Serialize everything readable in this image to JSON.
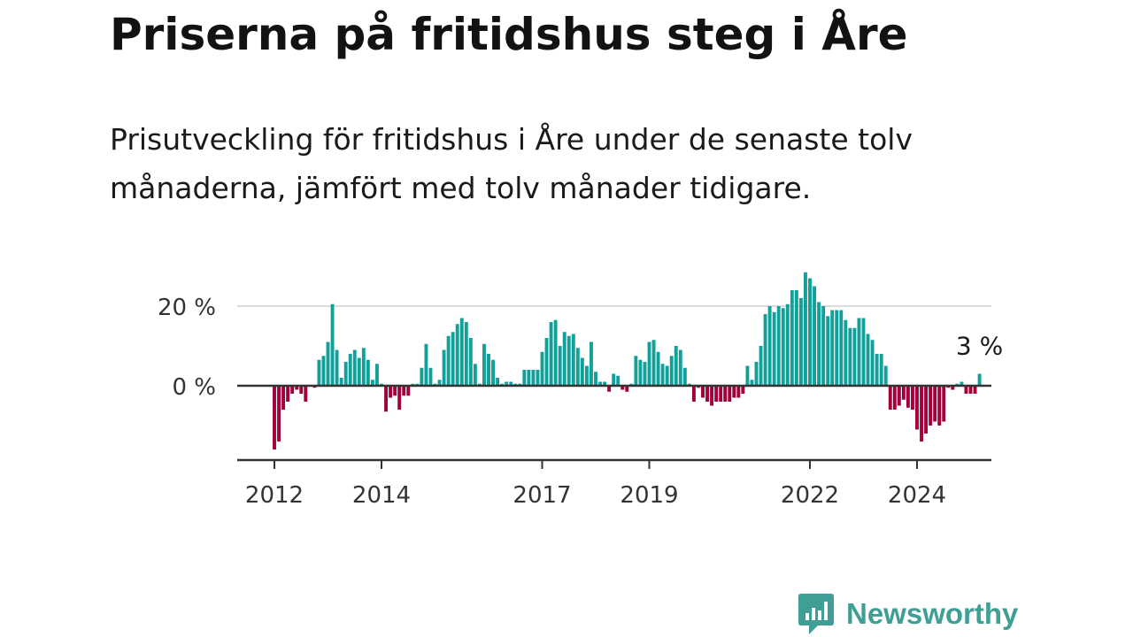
{
  "title": "Priserna på fritidshus steg i Åre",
  "subtitle": "Prisutveckling för fritidshus i Åre under de senaste tolv månaderna, jämfört med tolv månader tidigare.",
  "brand": {
    "name": "Newsworthy",
    "color": "#3f9f94"
  },
  "chart_data": {
    "type": "bar",
    "unit": "%",
    "x_start": "2012-01",
    "ylim": [
      -18,
      30
    ],
    "y_ticks": [
      0,
      20
    ],
    "y_tick_labels": [
      "0 %",
      "20 %"
    ],
    "x_ticks": [
      "2012",
      "2014",
      "2017",
      "2019",
      "2022",
      "2024"
    ],
    "grid": true,
    "colors": {
      "positive": "#12a19a",
      "negative": "#a3003b"
    },
    "annotation": {
      "text": "3 %"
    },
    "values": [
      -16,
      -14,
      -6,
      -4,
      -2,
      -1,
      -2,
      -4,
      0,
      -0.5,
      6.5,
      7.5,
      11,
      20.5,
      9,
      2,
      6,
      8,
      9,
      7,
      9.5,
      6.5,
      1.5,
      5.5,
      0.5,
      -6.5,
      -3,
      -2.5,
      -6,
      -2.5,
      -2.5,
      0.5,
      0.5,
      4.5,
      10.5,
      4.5,
      0.5,
      1.5,
      9,
      12.5,
      13.5,
      15.5,
      17,
      16,
      12,
      5.5,
      0.5,
      10.5,
      8,
      6.5,
      2,
      0.5,
      1,
      1,
      0.5,
      0.5,
      4,
      4,
      4,
      4,
      8.5,
      12,
      16,
      16.5,
      10,
      13.5,
      12.5,
      13,
      9.5,
      7,
      5,
      11,
      3.5,
      1,
      1,
      -1.5,
      3,
      2.5,
      -1,
      -1.5,
      0.5,
      7.5,
      6.5,
      6,
      11,
      11.5,
      8.5,
      5.5,
      5,
      7.5,
      10,
      9,
      4.5,
      0.5,
      -4,
      -0.5,
      -3,
      -4,
      -5,
      -4,
      -4,
      -4,
      -4,
      -3,
      -3,
      -2,
      5,
      1.5,
      6,
      10,
      18,
      20,
      18.5,
      20,
      19.5,
      20.5,
      24,
      24,
      22,
      28.5,
      27,
      25,
      21,
      20,
      17.5,
      19,
      19,
      19,
      16.5,
      14.5,
      14.5,
      17,
      17,
      13,
      11.5,
      8,
      8,
      5,
      -6,
      -6,
      -5,
      -3.5,
      -5.5,
      -6,
      -11,
      -14,
      -12,
      -10,
      -9,
      -10,
      -9,
      -0.5,
      -1,
      0.5,
      1,
      -2,
      -2,
      -2,
      3
    ]
  }
}
